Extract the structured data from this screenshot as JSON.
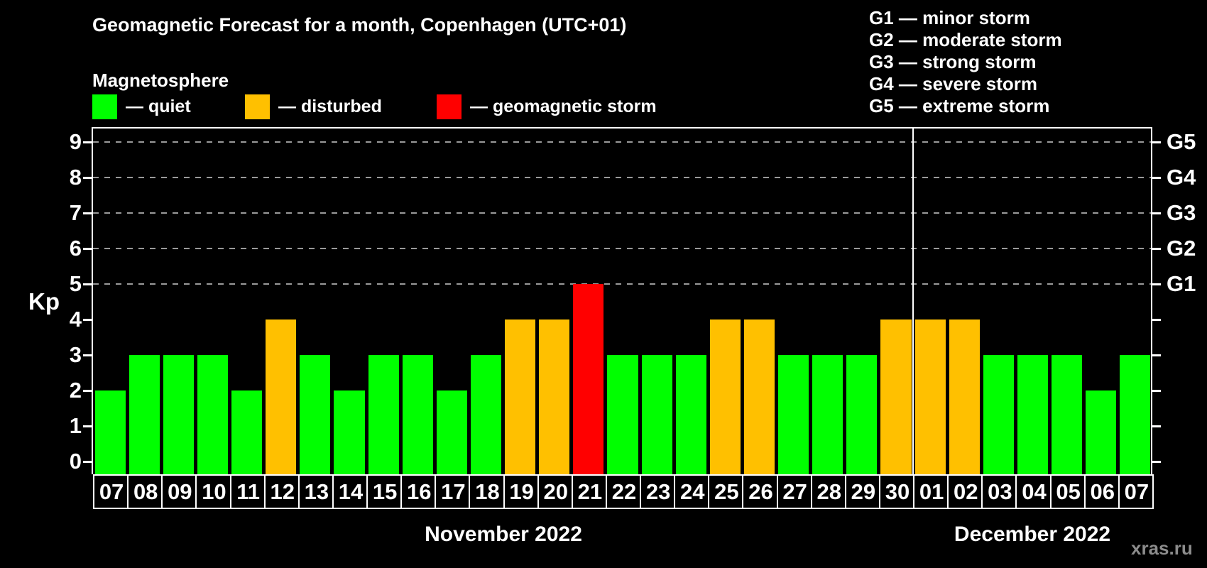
{
  "title": "Geomagnetic Forecast for a month, Copenhagen (UTC+01)",
  "subtitle": "Magnetosphere",
  "watermark": "xras.ru",
  "legend": {
    "items": [
      {
        "label": "— quiet",
        "status": "quiet"
      },
      {
        "label": "— disturbed",
        "status": "disturbed"
      },
      {
        "label": "— geomagnetic storm",
        "status": "storm"
      }
    ]
  },
  "g_scale_legend": {
    "lines": [
      "G1 — minor storm",
      "G2 — moderate storm",
      "G3 — strong storm",
      "G4 — severe storm",
      "G5 — extreme storm"
    ]
  },
  "chart_data": {
    "type": "bar",
    "title": "Geomagnetic Forecast for a month, Copenhagen (UTC+01)",
    "ylabel": "Kp",
    "ylim": [
      0,
      9
    ],
    "y_ticks": [
      0,
      1,
      2,
      3,
      4,
      5,
      6,
      7,
      8,
      9
    ],
    "gridlines_at": [
      5,
      6,
      7,
      8,
      9
    ],
    "right_axis": [
      {
        "label": "G1",
        "kp": 5
      },
      {
        "label": "G2",
        "kp": 6
      },
      {
        "label": "G3",
        "kp": 7
      },
      {
        "label": "G4",
        "kp": 8
      },
      {
        "label": "G5",
        "kp": 9
      }
    ],
    "colors": {
      "quiet": "#00ff00",
      "disturbed": "#ffc000",
      "storm": "#ff0000",
      "grid": "#9a9a9a",
      "axis": "#ffffff",
      "background": "#000000",
      "watermark": "#8c8c8c"
    },
    "months": [
      {
        "label": "November 2022",
        "days": 24
      },
      {
        "label": "December 2022",
        "days": 7
      }
    ],
    "bars": [
      {
        "day": "07",
        "kp": 2,
        "status": "quiet"
      },
      {
        "day": "08",
        "kp": 3,
        "status": "quiet"
      },
      {
        "day": "09",
        "kp": 3,
        "status": "quiet"
      },
      {
        "day": "10",
        "kp": 3,
        "status": "quiet"
      },
      {
        "day": "11",
        "kp": 2,
        "status": "quiet"
      },
      {
        "day": "12",
        "kp": 4,
        "status": "disturbed"
      },
      {
        "day": "13",
        "kp": 3,
        "status": "quiet"
      },
      {
        "day": "14",
        "kp": 2,
        "status": "quiet"
      },
      {
        "day": "15",
        "kp": 3,
        "status": "quiet"
      },
      {
        "day": "16",
        "kp": 3,
        "status": "quiet"
      },
      {
        "day": "17",
        "kp": 2,
        "status": "quiet"
      },
      {
        "day": "18",
        "kp": 3,
        "status": "quiet"
      },
      {
        "day": "19",
        "kp": 4,
        "status": "disturbed"
      },
      {
        "day": "20",
        "kp": 4,
        "status": "disturbed"
      },
      {
        "day": "21",
        "kp": 5,
        "status": "storm"
      },
      {
        "day": "22",
        "kp": 3,
        "status": "quiet"
      },
      {
        "day": "23",
        "kp": 3,
        "status": "quiet"
      },
      {
        "day": "24",
        "kp": 3,
        "status": "quiet"
      },
      {
        "day": "25",
        "kp": 4,
        "status": "disturbed"
      },
      {
        "day": "26",
        "kp": 4,
        "status": "disturbed"
      },
      {
        "day": "27",
        "kp": 3,
        "status": "quiet"
      },
      {
        "day": "28",
        "kp": 3,
        "status": "quiet"
      },
      {
        "day": "29",
        "kp": 3,
        "status": "quiet"
      },
      {
        "day": "30",
        "kp": 4,
        "status": "disturbed"
      },
      {
        "day": "01",
        "kp": 4,
        "status": "disturbed"
      },
      {
        "day": "02",
        "kp": 4,
        "status": "disturbed"
      },
      {
        "day": "03",
        "kp": 3,
        "status": "quiet"
      },
      {
        "day": "04",
        "kp": 3,
        "status": "quiet"
      },
      {
        "day": "05",
        "kp": 3,
        "status": "quiet"
      },
      {
        "day": "06",
        "kp": 2,
        "status": "quiet"
      },
      {
        "day": "07",
        "kp": 3,
        "status": "quiet"
      }
    ]
  }
}
